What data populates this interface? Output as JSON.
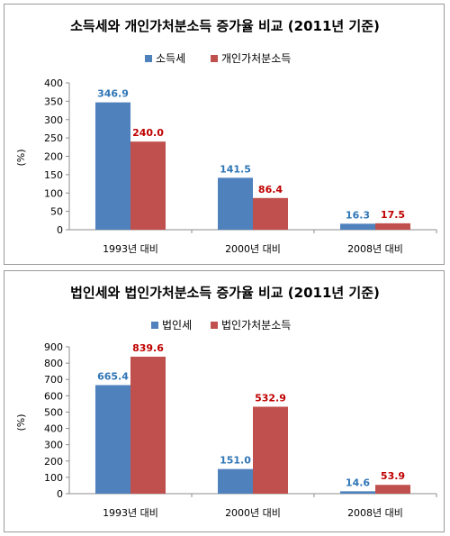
{
  "chart_data": [
    {
      "type": "bar",
      "title": "소득세와 개인가처분소득 증가율 비교 (2011년 기준)",
      "ylabel": "(%)",
      "categories": [
        "1993년 대비",
        "2000년 대비",
        "2008년 대비"
      ],
      "ylim": [
        0,
        400
      ],
      "yticks": [
        0,
        50,
        100,
        150,
        200,
        250,
        300,
        350,
        400
      ],
      "legend_position": "top",
      "grid": false,
      "series": [
        {
          "name": "소득세",
          "values": [
            346.9,
            141.5,
            16.3
          ],
          "labels": [
            "346.9",
            "141.5",
            "16.3"
          ],
          "color": "#4f81bd",
          "label_color": "#2e75b6"
        },
        {
          "name": "개인가처분소득",
          "values": [
            240.0,
            86.4,
            17.5
          ],
          "labels": [
            "240.0",
            "86.4",
            "17.5"
          ],
          "color": "#c0504d",
          "label_color": "#c00000"
        }
      ]
    },
    {
      "type": "bar",
      "title": "법인세와 법인가처분소득 증가율 비교 (2011년 기준)",
      "ylabel": "(%)",
      "categories": [
        "1993년 대비",
        "2000년 대비",
        "2008년 대비"
      ],
      "ylim": [
        0,
        900
      ],
      "yticks": [
        0,
        100,
        200,
        300,
        400,
        500,
        600,
        700,
        800,
        900
      ],
      "legend_position": "top",
      "grid": false,
      "series": [
        {
          "name": "법인세",
          "values": [
            665.4,
            151.0,
            14.6
          ],
          "labels": [
            "665.4",
            "151.0",
            "14.6"
          ],
          "color": "#4f81bd",
          "label_color": "#2e75b6"
        },
        {
          "name": "법인가처분소득",
          "values": [
            839.6,
            532.9,
            53.9
          ],
          "labels": [
            "839.6",
            "532.9",
            "53.9"
          ],
          "color": "#c0504d",
          "label_color": "#c00000"
        }
      ]
    }
  ]
}
